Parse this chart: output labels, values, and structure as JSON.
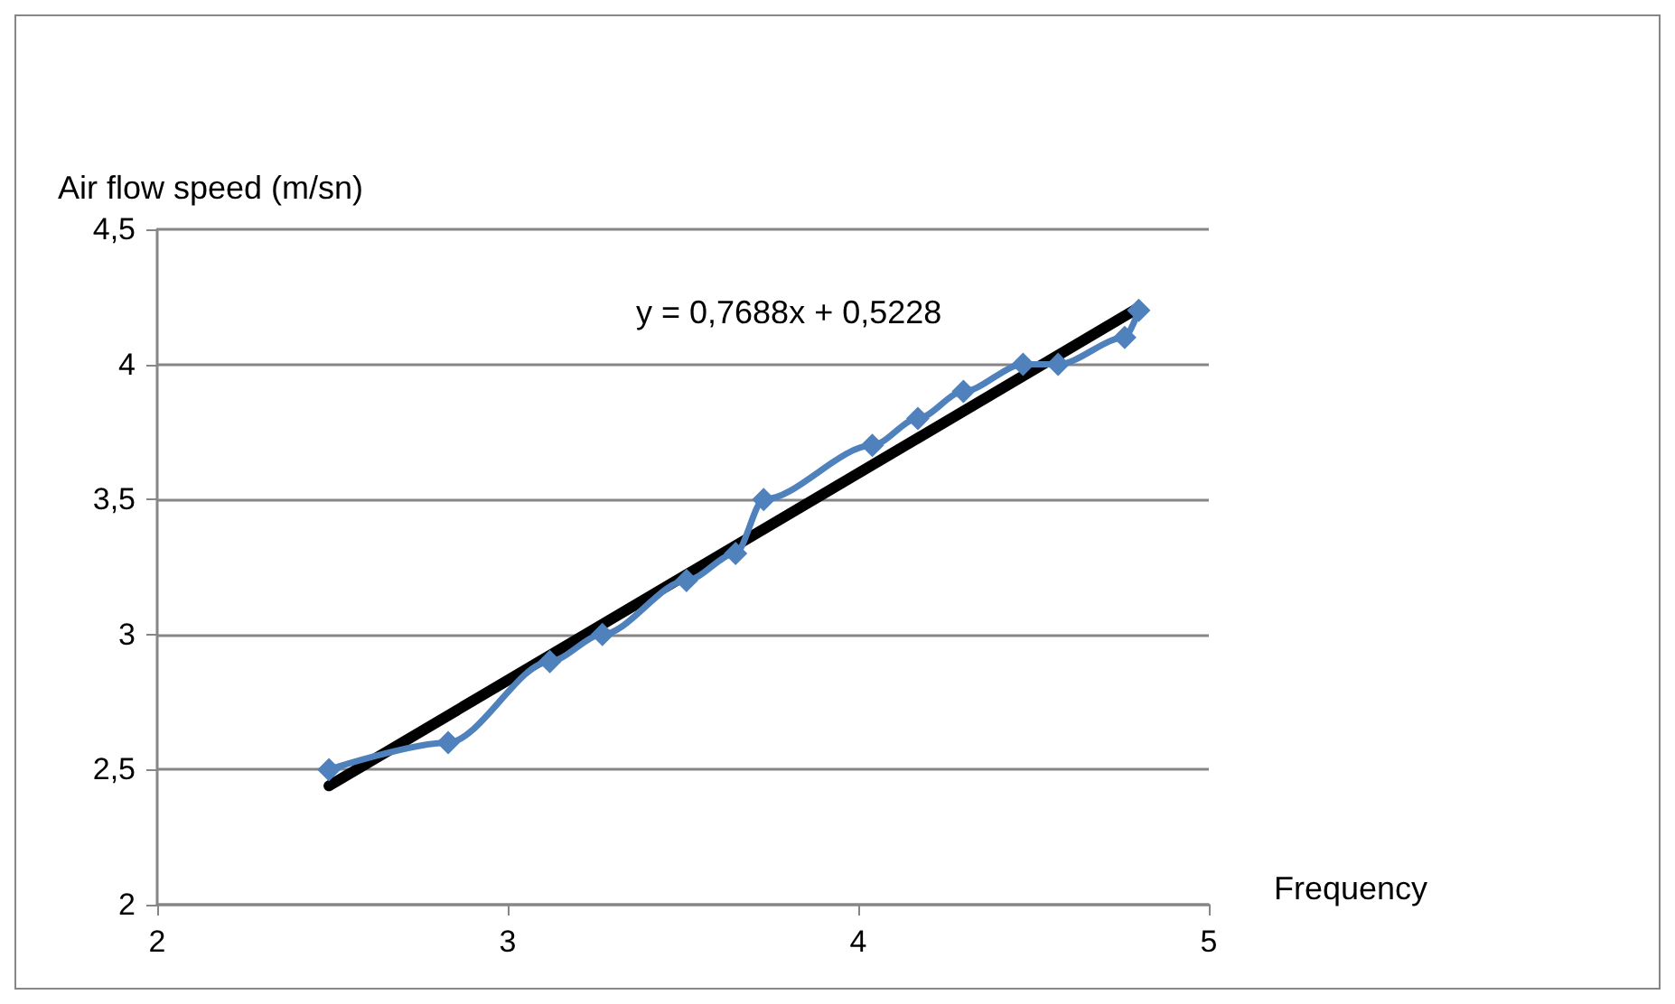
{
  "chart_data": {
    "type": "line",
    "xlabel": "Frequency",
    "ylabel": "Air flow speed (m/sn)",
    "xlim": [
      2,
      5
    ],
    "xticks": [
      2,
      3,
      4,
      5
    ],
    "ylim": [
      2,
      4.5
    ],
    "yticks": [
      {
        "value": 2,
        "label": "2"
      },
      {
        "value": 2.5,
        "label": "2,5"
      },
      {
        "value": 3,
        "label": "3"
      },
      {
        "value": 3.5,
        "label": "3,5"
      },
      {
        "value": 4,
        "label": "4"
      },
      {
        "value": 4.5,
        "label": "4,5"
      }
    ],
    "grid": "y",
    "marker": "diamond",
    "line_style": "solid",
    "series": [
      {
        "color": "#4f81bd",
        "x": [
          2.49,
          2.83,
          3.12,
          3.27,
          3.51,
          3.65,
          3.73,
          4.04,
          4.17,
          4.3,
          4.47,
          4.57,
          4.76,
          4.8
        ],
        "values": [
          2.5,
          2.6,
          2.9,
          3.0,
          3.2,
          3.3,
          3.5,
          3.7,
          3.8,
          3.9,
          4.0,
          4.0,
          4.1,
          4.2
        ]
      },
      {
        "color": "#000000",
        "marker": "none",
        "x": [
          2.49,
          4.8
        ],
        "values": [
          2.44,
          4.21
        ]
      }
    ],
    "annotations": [
      "y = 0,7688x + 0,5228"
    ]
  }
}
